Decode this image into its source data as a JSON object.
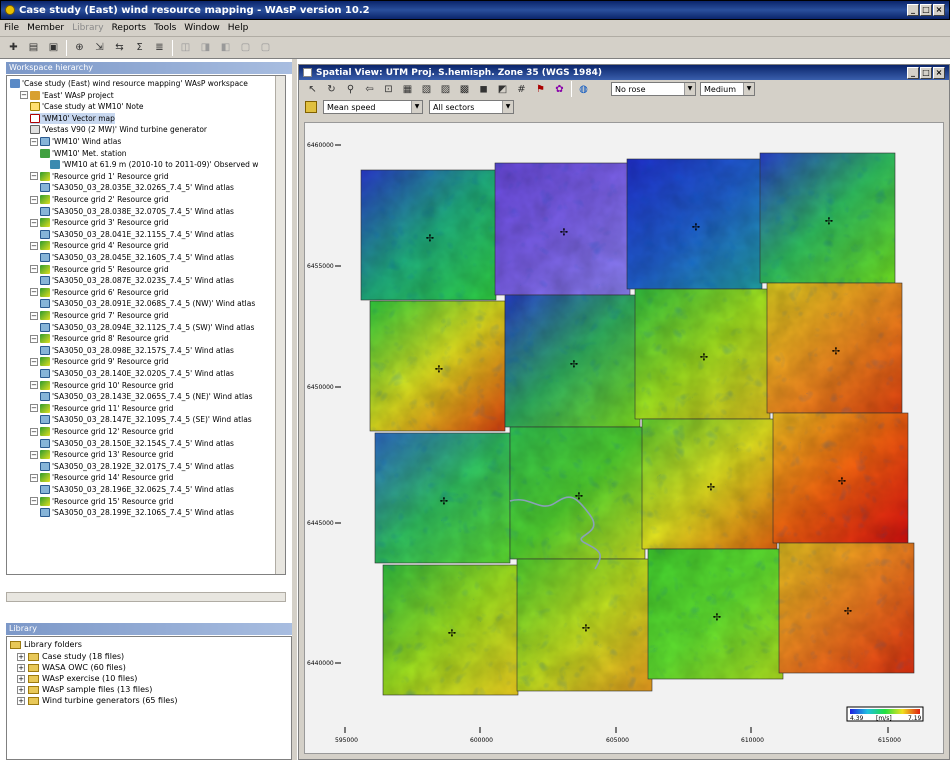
{
  "app": {
    "title": "Case study (East) wind resource mapping - WAsP version 10.2",
    "window_controls": [
      "_",
      "□",
      "×"
    ]
  },
  "menu": {
    "items": [
      {
        "label": "File",
        "enabled": true
      },
      {
        "label": "Member",
        "enabled": true
      },
      {
        "label": "Library",
        "enabled": false
      },
      {
        "label": "Reports",
        "enabled": true
      },
      {
        "label": "Tools",
        "enabled": true
      },
      {
        "label": "Window",
        "enabled": true
      },
      {
        "label": "Help",
        "enabled": true
      }
    ]
  },
  "workspace": {
    "header": "Workspace hierarchy",
    "nodes": [
      {
        "label": "'Case study (East) wind resource mapping' WAsP workspace",
        "icon": "workspace-icon",
        "level": 0
      },
      {
        "label": "'East' WAsP project",
        "icon": "project-icon",
        "level": 1
      },
      {
        "label": "'Case study at WM10' Note",
        "icon": "note-icon",
        "level": 2
      },
      {
        "label": "'WM10' Vector map",
        "icon": "vector-map-icon",
        "level": 2,
        "selected": true
      },
      {
        "label": "'Vestas V90 (2 MW)' Wind turbine generator",
        "icon": "turbine-icon",
        "level": 2
      },
      {
        "label": "'WM10' Wind atlas",
        "icon": "wind-atlas-icon",
        "level": 2
      },
      {
        "label": "'WM10' Met. station",
        "icon": "met-station-icon",
        "level": 3
      },
      {
        "label": "'WM10 at 61.9 m (2010-10 to 2011-09)' Observed w",
        "icon": "observed-wind-icon",
        "level": 4
      },
      {
        "label": "'Resource grid 1' Resource grid",
        "icon": "resource-grid-icon",
        "level": 2
      },
      {
        "label": "'SA3050_03_28.035E_32.026S_7.4_5' Wind atlas",
        "icon": "wind-atlas-icon",
        "level": 3
      },
      {
        "label": "'Resource grid 2' Resource grid",
        "icon": "resource-grid-icon",
        "level": 2
      },
      {
        "label": "'SA3050_03_28.038E_32.070S_7.4_5' Wind atlas",
        "icon": "wind-atlas-icon",
        "level": 3
      },
      {
        "label": "'Resource grid 3' Resource grid",
        "icon": "resource-grid-icon",
        "level": 2
      },
      {
        "label": "'SA3050_03_28.041E_32.115S_7.4_5' Wind atlas",
        "icon": "wind-atlas-icon",
        "level": 3
      },
      {
        "label": "'Resource grid 4' Resource grid",
        "icon": "resource-grid-icon",
        "level": 2
      },
      {
        "label": "'SA3050_03_28.045E_32.160S_7.4_5' Wind atlas",
        "icon": "wind-atlas-icon",
        "level": 3
      },
      {
        "label": "'Resource grid 5' Resource grid",
        "icon": "resource-grid-icon",
        "level": 2
      },
      {
        "label": "'SA3050_03_28.087E_32.023S_7.4_5' Wind atlas",
        "icon": "wind-atlas-icon",
        "level": 3
      },
      {
        "label": "'Resource grid 6' Resource grid",
        "icon": "resource-grid-icon",
        "level": 2
      },
      {
        "label": "'SA3050_03_28.091E_32.068S_7.4_5 (NW)' Wind atlas",
        "icon": "wind-atlas-icon",
        "level": 3
      },
      {
        "label": "'Resource grid 7' Resource grid",
        "icon": "resource-grid-icon",
        "level": 2
      },
      {
        "label": "'SA3050_03_28.094E_32.112S_7.4_5 (SW)' Wind atlas",
        "icon": "wind-atlas-icon",
        "level": 3
      },
      {
        "label": "'Resource grid 8' Resource grid",
        "icon": "resource-grid-icon",
        "level": 2
      },
      {
        "label": "'SA3050_03_28.098E_32.157S_7.4_5' Wind atlas",
        "icon": "wind-atlas-icon",
        "level": 3
      },
      {
        "label": "'Resource grid 9' Resource grid",
        "icon": "resource-grid-icon",
        "level": 2
      },
      {
        "label": "'SA3050_03_28.140E_32.020S_7.4_5' Wind atlas",
        "icon": "wind-atlas-icon",
        "level": 3
      },
      {
        "label": "'Resource grid 10' Resource grid",
        "icon": "resource-grid-icon",
        "level": 2
      },
      {
        "label": "'SA3050_03_28.143E_32.065S_7.4_5 (NE)' Wind atlas",
        "icon": "wind-atlas-icon",
        "level": 3
      },
      {
        "label": "'Resource grid 11' Resource grid",
        "icon": "resource-grid-icon",
        "level": 2
      },
      {
        "label": "'SA3050_03_28.147E_32.109S_7.4_5 (SE)' Wind atlas",
        "icon": "wind-atlas-icon",
        "level": 3
      },
      {
        "label": "'Resource grid 12' Resource grid",
        "icon": "resource-grid-icon",
        "level": 2
      },
      {
        "label": "'SA3050_03_28.150E_32.154S_7.4_5' Wind atlas",
        "icon": "wind-atlas-icon",
        "level": 3
      },
      {
        "label": "'Resource grid 13' Resource grid",
        "icon": "resource-grid-icon",
        "level": 2
      },
      {
        "label": "'SA3050_03_28.192E_32.017S_7.4_5' Wind atlas",
        "icon": "wind-atlas-icon",
        "level": 3
      },
      {
        "label": "'Resource grid 14' Resource grid",
        "icon": "resource-grid-icon",
        "level": 2
      },
      {
        "label": "'SA3050_03_28.196E_32.062S_7.4_5' Wind atlas",
        "icon": "wind-atlas-icon",
        "level": 3
      },
      {
        "label": "'Resource grid 15' Resource grid",
        "icon": "resource-grid-icon",
        "level": 2
      },
      {
        "label": "'SA3050_03_28.199E_32.106S_7.4_5' Wind atlas",
        "icon": "wind-atlas-icon",
        "level": 3
      }
    ]
  },
  "library": {
    "header": "Library",
    "root": "Library folders",
    "folders": [
      "Case study (18 files)",
      "WASA OWC (60 files)",
      "WAsP exercise (10 files)",
      "WAsP sample files (13 files)",
      "Wind turbine generators (65 files)"
    ]
  },
  "spatial_view": {
    "title": "Spatial View: UTM Proj. S.hemisph. Zone 35 (WGS 1984)",
    "rose_select": "No rose",
    "size_select": "Medium",
    "variable_select": "Mean speed",
    "sector_select": "All sectors",
    "y_ticks": [
      "6460000",
      "6455000",
      "6450000",
      "6445000",
      "6440000"
    ],
    "x_ticks": [
      "595000",
      "600000",
      "605000",
      "610000",
      "615000"
    ],
    "legend": {
      "min": "4.39",
      "unit": "[m/s]",
      "max": "7.19"
    }
  },
  "colors": {
    "title_bar": "#0a246a",
    "panel_gray": "#d4d0c8",
    "speed_low": "#3030e0",
    "speed_mid": "#30d030",
    "speed_high": "#e02010"
  }
}
